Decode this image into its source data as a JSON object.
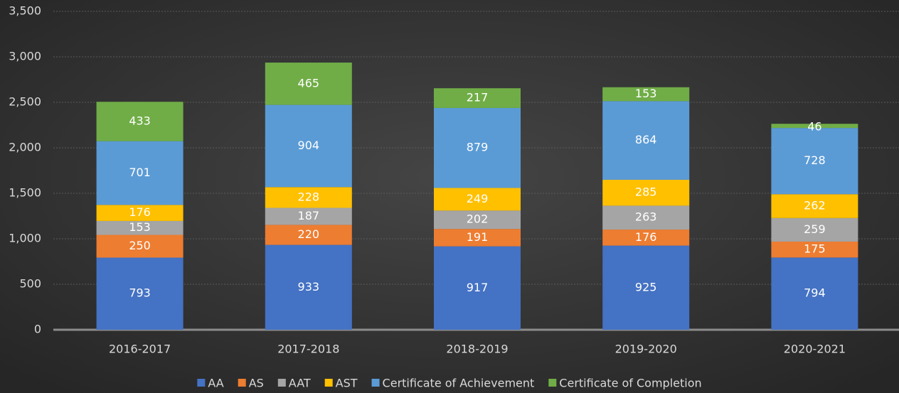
{
  "chart_data": {
    "type": "stacked_bar",
    "categories": [
      "2016-2017",
      "2017-2018",
      "2018-2019",
      "2019-2020",
      "2020-2021"
    ],
    "series": [
      {
        "name": "AA",
        "color": "#4472c4",
        "values": [
          793,
          933,
          917,
          925,
          794
        ]
      },
      {
        "name": "AS",
        "color": "#ed7d31",
        "values": [
          250,
          220,
          191,
          176,
          175
        ]
      },
      {
        "name": "AAT",
        "color": "#a5a5a5",
        "values": [
          153,
          187,
          202,
          263,
          259
        ]
      },
      {
        "name": "AST",
        "color": "#ffc000",
        "values": [
          176,
          228,
          249,
          285,
          262
        ]
      },
      {
        "name": "Certificate of Achievement",
        "color": "#5b9bd5",
        "values": [
          701,
          904,
          879,
          864,
          728
        ]
      },
      {
        "name": "Certificate of Completion",
        "color": "#70ad47",
        "values": [
          433,
          465,
          217,
          153,
          46
        ]
      }
    ],
    "ylim": [
      0,
      3500
    ],
    "yticks": [
      0,
      500,
      {
        "value": 1000,
        "label": "1,000"
      },
      {
        "value": 1500,
        "label": "1,500"
      },
      {
        "value": 2000,
        "label": "2,000"
      },
      {
        "value": 2500,
        "label": "2,500"
      },
      {
        "value": 3000,
        "label": "3,000"
      },
      {
        "value": 3500,
        "label": "3,500"
      }
    ],
    "grid": true,
    "legend": "bottom"
  }
}
